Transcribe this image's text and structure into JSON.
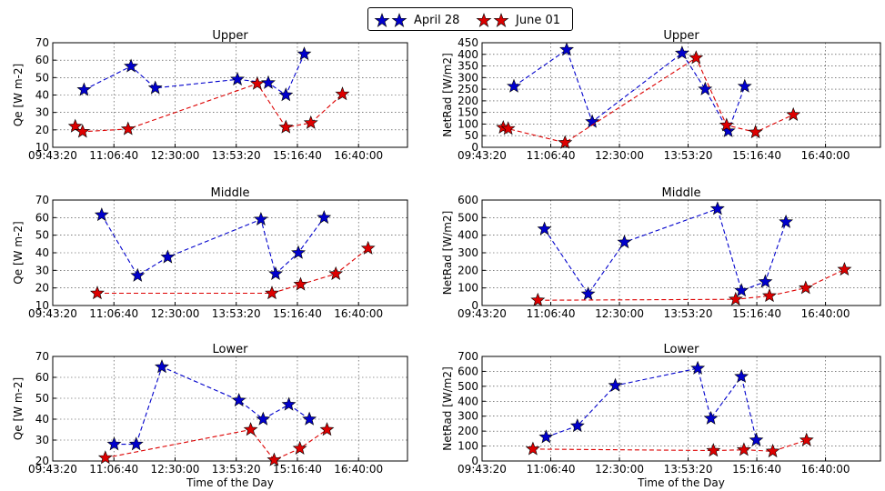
{
  "legend": {
    "items": [
      {
        "label": "April 28",
        "color": "#0000cc"
      },
      {
        "label": "June 01",
        "color": "#dd0000"
      }
    ]
  },
  "chart_data": [
    {
      "type": "line",
      "title": "Upper",
      "xlabel": "",
      "ylabel": "Qe  [W m-2]",
      "xlim": [
        "09:43:20",
        "17:46:40"
      ],
      "ylim": [
        10,
        70
      ],
      "xticks": [
        "09:43:20",
        "11:06:40",
        "12:30:00",
        "13:53:20",
        "15:16:40",
        "16:40:00"
      ],
      "yticks": [
        10,
        20,
        30,
        40,
        50,
        60,
        70
      ],
      "grid": true,
      "series": [
        {
          "name": "April 28",
          "color": "#0000cc",
          "points": [
            [
              "10:26:00",
              43
            ],
            [
              "11:30:00",
              56.5
            ],
            [
              "12:03:00",
              44
            ],
            [
              "13:55:00",
              49
            ],
            [
              "14:37:00",
              47
            ],
            [
              "15:01:00",
              40
            ],
            [
              "15:26:00",
              63.5
            ]
          ]
        },
        {
          "name": "June 01",
          "color": "#dd0000",
          "points": [
            [
              "10:14:00",
              22
            ],
            [
              "10:24:00",
              19
            ],
            [
              "11:26:00",
              20.5
            ],
            [
              "14:22:00",
              46.5
            ],
            [
              "15:01:00",
              21.5
            ],
            [
              "15:35:00",
              24
            ],
            [
              "16:18:00",
              40.5
            ]
          ]
        }
      ]
    },
    {
      "type": "line",
      "title": "Upper",
      "xlabel": "",
      "ylabel": "NetRad  [W/m2]",
      "xlim": [
        "09:43:20",
        "17:46:40"
      ],
      "ylim": [
        0,
        450
      ],
      "xticks": [
        "09:43:20",
        "11:06:40",
        "12:30:00",
        "13:53:20",
        "15:16:40",
        "16:40:00"
      ],
      "yticks": [
        0,
        50,
        100,
        150,
        200,
        250,
        300,
        350,
        400,
        450
      ],
      "grid": true,
      "series": [
        {
          "name": "April 28",
          "color": "#0000cc",
          "points": [
            [
              "10:22:00",
              262
            ],
            [
              "11:26:00",
              420
            ],
            [
              "11:57:00",
              110
            ],
            [
              "13:46:00",
              405
            ],
            [
              "14:14:00",
              250
            ],
            [
              "14:42:00",
              70
            ],
            [
              "15:02:00",
              262
            ]
          ]
        },
        {
          "name": "June 01",
          "color": "#dd0000",
          "points": [
            [
              "10:09:00",
              85
            ],
            [
              "10:15:00",
              80
            ],
            [
              "11:24:00",
              20
            ],
            [
              "14:03:00",
              385
            ],
            [
              "14:40:00",
              95
            ],
            [
              "15:15:00",
              65
            ],
            [
              "16:01:00",
              140
            ]
          ]
        }
      ]
    },
    {
      "type": "line",
      "title": "Middle",
      "xlabel": "",
      "ylabel": "Qe  [W m-2]",
      "xlim": [
        "09:43:20",
        "17:46:40"
      ],
      "ylim": [
        10,
        70
      ],
      "xticks": [
        "09:43:20",
        "11:06:40",
        "12:30:00",
        "13:53:20",
        "15:16:40",
        "16:40:00"
      ],
      "yticks": [
        10,
        20,
        30,
        40,
        50,
        60,
        70
      ],
      "grid": true,
      "series": [
        {
          "name": "April 28",
          "color": "#0000cc",
          "points": [
            [
              "10:50:00",
              61.5
            ],
            [
              "11:39:00",
              27
            ],
            [
              "12:20:00",
              37.5
            ],
            [
              "14:27:00",
              59
            ],
            [
              "14:47:00",
              28
            ],
            [
              "15:18:00",
              40
            ],
            [
              "15:53:00",
              60
            ]
          ]
        },
        {
          "name": "June 01",
          "color": "#dd0000",
          "points": [
            [
              "10:44:00",
              17
            ],
            [
              "14:42:00",
              17
            ],
            [
              "15:21:00",
              22
            ],
            [
              "16:09:00",
              28
            ],
            [
              "16:53:00",
              42.5
            ]
          ]
        }
      ]
    },
    {
      "type": "line",
      "title": "Middle",
      "xlabel": "",
      "ylabel": "NetRad  [W/m2]",
      "xlim": [
        "09:43:20",
        "17:46:40"
      ],
      "ylim": [
        0,
        600
      ],
      "xticks": [
        "09:43:20",
        "11:06:40",
        "12:30:00",
        "13:53:20",
        "15:16:40",
        "16:40:00"
      ],
      "yticks": [
        0,
        100,
        200,
        300,
        400,
        500,
        600
      ],
      "grid": true,
      "series": [
        {
          "name": "April 28",
          "color": "#0000cc",
          "points": [
            [
              "10:59:00",
              435
            ],
            [
              "11:52:00",
              65
            ],
            [
              "12:36:00",
              360
            ],
            [
              "14:29:00",
              550
            ],
            [
              "14:58:00",
              85
            ],
            [
              "15:27:00",
              135
            ],
            [
              "15:52:00",
              475
            ]
          ]
        },
        {
          "name": "June 01",
          "color": "#dd0000",
          "points": [
            [
              "10:51:00",
              30
            ],
            [
              "14:51:00",
              35
            ],
            [
              "15:32:00",
              55
            ],
            [
              "16:16:00",
              100
            ],
            [
              "17:03:00",
              205
            ]
          ]
        }
      ]
    },
    {
      "type": "line",
      "title": "Lower",
      "xlabel": "Time of the Day",
      "ylabel": "Qe  [W m-2]",
      "xlim": [
        "09:43:20",
        "17:46:40"
      ],
      "ylim": [
        20,
        70
      ],
      "xticks": [
        "09:43:20",
        "11:06:40",
        "12:30:00",
        "13:53:20",
        "15:16:40",
        "16:40:00"
      ],
      "yticks": [
        20,
        30,
        40,
        50,
        60,
        70
      ],
      "grid": true,
      "series": [
        {
          "name": "April 28",
          "color": "#0000cc",
          "points": [
            [
              "11:07:00",
              28
            ],
            [
              "11:37:00",
              28
            ],
            [
              "12:12:00",
              65
            ],
            [
              "13:57:00",
              49
            ],
            [
              "14:30:00",
              40
            ],
            [
              "15:05:00",
              47
            ],
            [
              "15:33:00",
              40
            ]
          ]
        },
        {
          "name": "June 01",
          "color": "#dd0000",
          "points": [
            [
              "10:55:00",
              21.5
            ],
            [
              "14:13:00",
              35
            ],
            [
              "14:45:00",
              20.5
            ],
            [
              "15:20:00",
              26
            ],
            [
              "15:57:00",
              35
            ]
          ]
        }
      ]
    },
    {
      "type": "line",
      "title": "Lower",
      "xlabel": "Time of the Day",
      "ylabel": "NetRad  [W/m2]",
      "xlim": [
        "09:43:20",
        "17:46:40"
      ],
      "ylim": [
        0,
        700
      ],
      "xticks": [
        "09:43:20",
        "11:06:40",
        "12:30:00",
        "13:53:20",
        "15:16:40",
        "16:40:00"
      ],
      "yticks": [
        0,
        100,
        200,
        300,
        400,
        500,
        600,
        700
      ],
      "grid": true,
      "series": [
        {
          "name": "April 28",
          "color": "#0000cc",
          "points": [
            [
              "11:01:00",
              160
            ],
            [
              "11:39:00",
              235
            ],
            [
              "12:25:00",
              505
            ],
            [
              "14:05:00",
              620
            ],
            [
              "14:21:00",
              285
            ],
            [
              "14:58:00",
              565
            ],
            [
              "15:16:00",
              140
            ]
          ]
        },
        {
          "name": "June 01",
          "color": "#dd0000",
          "points": [
            [
              "10:45:00",
              80
            ],
            [
              "14:24:00",
              70
            ],
            [
              "15:01:00",
              75
            ],
            [
              "15:36:00",
              65
            ],
            [
              "16:17:00",
              140
            ]
          ]
        }
      ]
    }
  ]
}
